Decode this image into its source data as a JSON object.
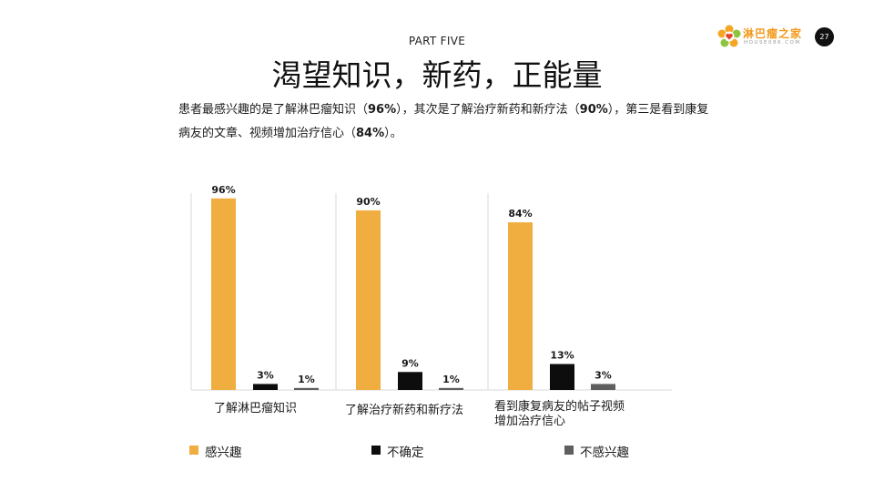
{
  "header": {
    "part_label": "PART FIVE",
    "title": "渴望知识，新药，正能量",
    "page_number": "27"
  },
  "logo": {
    "name": "淋巴瘤之家",
    "subtext": "HOUSE086.COM"
  },
  "intro": {
    "s1": "患者最感兴趣的是了解淋巴瘤知识（",
    "v1": "96%",
    "s2": "），其次是了解治疗新药和新疗法（",
    "v2": "90%",
    "s3": "），第三是看到康复病友的文章、视频增加治疗信心（",
    "v3": "84%",
    "s4": "）。"
  },
  "chart_data": {
    "type": "bar",
    "categories": [
      [
        "了解淋巴瘤知识"
      ],
      [
        "了解治疗新药和新疗法"
      ],
      [
        "看到康复病友的帖子视频",
        "增加治疗信心"
      ]
    ],
    "series": [
      {
        "name": "感兴趣",
        "values": [
          96,
          90,
          84
        ],
        "labels": [
          "96%",
          "90%",
          "84%"
        ],
        "color": "#f0ad40"
      },
      {
        "name": "不确定",
        "values": [
          3,
          9,
          13
        ],
        "labels": [
          "3%",
          "9%",
          "13%"
        ],
        "color": "#0d0d0d"
      },
      {
        "name": "不感兴趣",
        "values": [
          1,
          1,
          3
        ],
        "labels": [
          "1%",
          "1%",
          "3%"
        ],
        "color": "#5f5f5f"
      }
    ],
    "ylim": [
      0,
      100
    ],
    "grid": false,
    "legend_position": "bottom"
  }
}
